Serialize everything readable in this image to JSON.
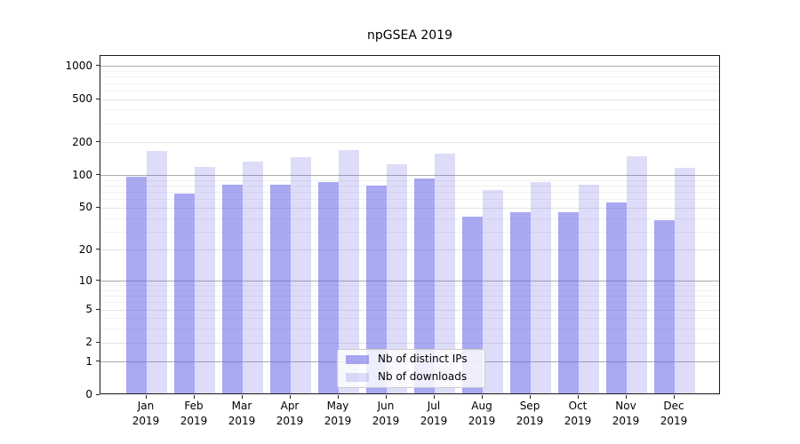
{
  "title": "npGSEA 2019",
  "legend": {
    "items": [
      {
        "label": "Nb of distinct IPs"
      },
      {
        "label": "Nb of downloads"
      }
    ]
  },
  "colors": {
    "bar_ips": "rgba(99,99,229,0.55)",
    "bar_downloads": "rgba(99,99,229,0.22)",
    "grid_power10": "#ababab",
    "grid_tick": "#e4e4e4",
    "grid_minor": "#f1f1f1",
    "spine": "#1a1a1a",
    "legend_border": "#cccccc"
  },
  "chart_data": {
    "type": "bar",
    "title": "npGSEA 2019",
    "categories": [
      "Jan 2019",
      "Feb 2019",
      "Mar 2019",
      "Apr 2019",
      "May 2019",
      "Jun 2019",
      "Jul 2019",
      "Aug 2019",
      "Sep 2019",
      "Oct 2019",
      "Nov 2019",
      "Dec 2019"
    ],
    "month_labels": [
      "Jan",
      "Feb",
      "Mar",
      "Apr",
      "May",
      "Jun",
      "Jul",
      "Aug",
      "Sep",
      "Oct",
      "Nov",
      "Dec"
    ],
    "year_label": "2019",
    "series": [
      {
        "name": "Nb of distinct IPs",
        "values": [
          95,
          66,
          80,
          80,
          84,
          78,
          91,
          40,
          44,
          44,
          54,
          37
        ]
      },
      {
        "name": "Nb of downloads",
        "values": [
          163,
          116,
          129,
          142,
          165,
          122,
          155,
          71,
          84,
          79,
          145,
          114
        ]
      }
    ],
    "xlabel": "",
    "ylabel": "",
    "y_scale": "log10(1+x)",
    "y_ticks": [
      0,
      1,
      2,
      5,
      10,
      20,
      50,
      100,
      200,
      500,
      1000
    ],
    "ylim": [
      0,
      1250
    ],
    "grid": true,
    "legend_position": "lower center"
  }
}
